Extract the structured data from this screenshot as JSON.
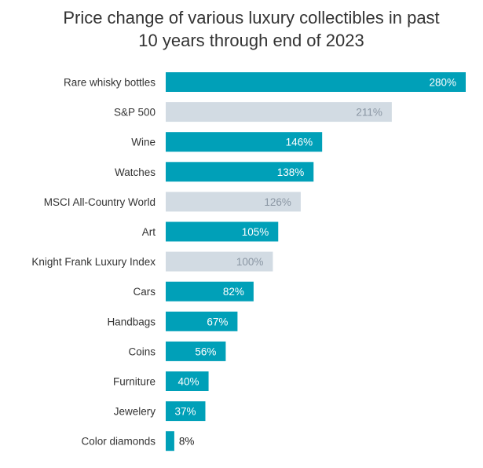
{
  "chart_data": {
    "type": "bar",
    "orientation": "horizontal",
    "title_lines": [
      "Price change of various luxury collectibles in past",
      "10 years through end of 2023"
    ],
    "categories": [
      "Rare whisky bottles",
      "S&P 500",
      "Wine",
      "Watches",
      "MSCI All-Country World",
      "Art",
      "Knight Frank Luxury Index",
      "Cars",
      "Handbags",
      "Coins",
      "Furniture",
      "Jewelery",
      "Color diamonds"
    ],
    "values": [
      280,
      211,
      146,
      138,
      126,
      105,
      100,
      82,
      67,
      56,
      40,
      37,
      8
    ],
    "value_labels": [
      "280%",
      "211%",
      "146%",
      "138%",
      "126%",
      "105%",
      "100%",
      "82%",
      "67%",
      "56%",
      "40%",
      "37%",
      "8%"
    ],
    "is_benchmark": [
      false,
      true,
      false,
      false,
      true,
      false,
      true,
      false,
      false,
      false,
      false,
      false,
      false
    ],
    "xlim": [
      0,
      280
    ],
    "grid": false,
    "legend": "none",
    "colors": {
      "collectible": "#00a0b8",
      "benchmark": "#d2dbe3",
      "label_on_collectible": "#ffffff",
      "label_on_benchmark": "#8a96a3",
      "label_outside": "#222222"
    }
  }
}
